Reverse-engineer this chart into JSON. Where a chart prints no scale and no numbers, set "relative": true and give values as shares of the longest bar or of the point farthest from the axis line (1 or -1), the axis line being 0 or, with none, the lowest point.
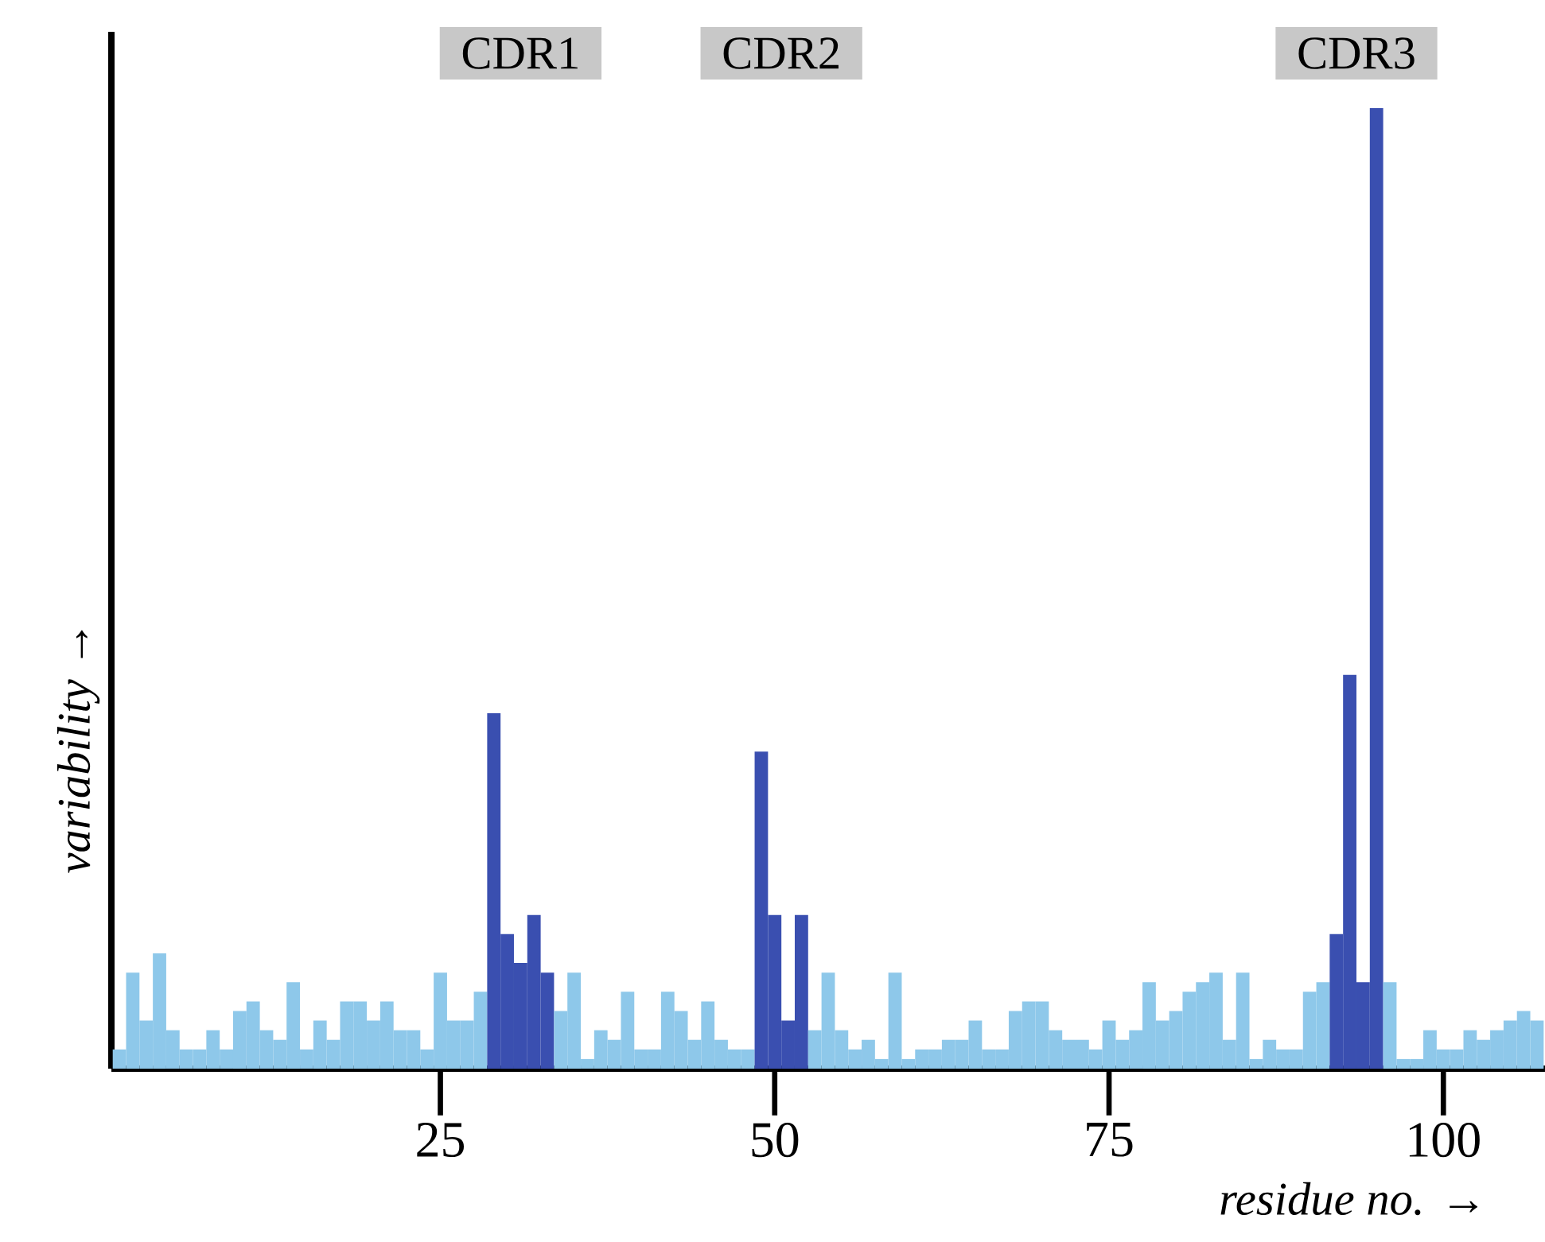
{
  "chart_data": {
    "type": "bar",
    "relative": true,
    "xlabel": "residue no. →",
    "ylabel": "variability →",
    "annotations": [
      "CDR1",
      "CDR2",
      "CDR3"
    ],
    "x": [
      1,
      2,
      3,
      4,
      5,
      6,
      7,
      8,
      9,
      10,
      11,
      12,
      13,
      14,
      15,
      16,
      17,
      18,
      19,
      20,
      21,
      22,
      23,
      24,
      25,
      26,
      27,
      28,
      29,
      30,
      31,
      32,
      33,
      34,
      35,
      36,
      37,
      38,
      39,
      40,
      41,
      42,
      43,
      44,
      45,
      46,
      47,
      48,
      49,
      50,
      51,
      52,
      53,
      54,
      55,
      56,
      57,
      58,
      59,
      60,
      61,
      62,
      63,
      64,
      65,
      66,
      67,
      68,
      69,
      70,
      71,
      72,
      73,
      74,
      75,
      76,
      77,
      78,
      79,
      80,
      81,
      82,
      83,
      84,
      85,
      86,
      87,
      88,
      89,
      90,
      91,
      92,
      93,
      94,
      95,
      96,
      97,
      98,
      99,
      100,
      101,
      102,
      103,
      104,
      105,
      106,
      107
    ],
    "xlim": [
      0.4,
      107.6
    ],
    "xticks": [
      25,
      50,
      75,
      100
    ],
    "values": [
      0.02,
      0.1,
      0.05,
      0.12,
      0.04,
      0.02,
      0.02,
      0.04,
      0.02,
      0.06,
      0.07,
      0.04,
      0.03,
      0.09,
      0.02,
      0.05,
      0.03,
      0.07,
      0.07,
      0.05,
      0.07,
      0.04,
      0.04,
      0.02,
      0.1,
      0.05,
      0.05,
      0.08,
      0.37,
      0.14,
      0.11,
      0.16,
      0.1,
      0.06,
      0.1,
      0.01,
      0.04,
      0.03,
      0.08,
      0.02,
      0.02,
      0.08,
      0.06,
      0.03,
      0.07,
      0.03,
      0.02,
      0.02,
      0.33,
      0.16,
      0.05,
      0.16,
      0.04,
      0.1,
      0.04,
      0.02,
      0.03,
      0.01,
      0.1,
      0.01,
      0.02,
      0.02,
      0.03,
      0.03,
      0.05,
      0.02,
      0.02,
      0.06,
      0.07,
      0.07,
      0.04,
      0.03,
      0.03,
      0.02,
      0.05,
      0.03,
      0.04,
      0.09,
      0.05,
      0.06,
      0.08,
      0.09,
      0.1,
      0.03,
      0.1,
      0.01,
      0.03,
      0.02,
      0.02,
      0.08,
      0.09,
      0.14,
      0.41,
      0.09,
      1,
      0.09,
      0.01,
      0.01,
      0.04,
      0.02,
      0.02,
      0.04,
      0.03,
      0.04,
      0.05,
      0.06,
      0.05
    ],
    "colors": [
      "#8ec8ea",
      "#8ec8ea",
      "#8ec8ea",
      "#8ec8ea",
      "#8ec8ea",
      "#8ec8ea",
      "#8ec8ea",
      "#8ec8ea",
      "#8ec8ea",
      "#8ec8ea",
      "#8ec8ea",
      "#8ec8ea",
      "#8ec8ea",
      "#8ec8ea",
      "#8ec8ea",
      "#8ec8ea",
      "#8ec8ea",
      "#8ec8ea",
      "#8ec8ea",
      "#8ec8ea",
      "#8ec8ea",
      "#8ec8ea",
      "#8ec8ea",
      "#8ec8ea",
      "#8ec8ea",
      "#8ec8ea",
      "#8ec8ea",
      "#8ec8ea",
      "#3a4fb0",
      "#3a4fb0",
      "#3a4fb0",
      "#3a4fb0",
      "#3a4fb0",
      "#8ec8ea",
      "#8ec8ea",
      "#8ec8ea",
      "#8ec8ea",
      "#8ec8ea",
      "#8ec8ea",
      "#8ec8ea",
      "#8ec8ea",
      "#8ec8ea",
      "#8ec8ea",
      "#8ec8ea",
      "#8ec8ea",
      "#8ec8ea",
      "#8ec8ea",
      "#8ec8ea",
      "#3a4fb0",
      "#3a4fb0",
      "#3a4fb0",
      "#3a4fb0",
      "#8ec8ea",
      "#8ec8ea",
      "#8ec8ea",
      "#8ec8ea",
      "#8ec8ea",
      "#8ec8ea",
      "#8ec8ea",
      "#8ec8ea",
      "#8ec8ea",
      "#8ec8ea",
      "#8ec8ea",
      "#8ec8ea",
      "#8ec8ea",
      "#8ec8ea",
      "#8ec8ea",
      "#8ec8ea",
      "#8ec8ea",
      "#8ec8ea",
      "#8ec8ea",
      "#8ec8ea",
      "#8ec8ea",
      "#8ec8ea",
      "#8ec8ea",
      "#8ec8ea",
      "#8ec8ea",
      "#8ec8ea",
      "#8ec8ea",
      "#8ec8ea",
      "#8ec8ea",
      "#8ec8ea",
      "#8ec8ea",
      "#8ec8ea",
      "#8ec8ea",
      "#8ec8ea",
      "#8ec8ea",
      "#8ec8ea",
      "#8ec8ea",
      "#8ec8ea",
      "#8ec8ea",
      "#3a4fb0",
      "#3a4fb0",
      "#3a4fb0",
      "#3a4fb0",
      "#8ec8ea",
      "#8ec8ea",
      "#8ec8ea",
      "#8ec8ea",
      "#8ec8ea",
      "#8ec8ea",
      "#8ec8ea",
      "#8ec8ea",
      "#8ec8ea",
      "#8ec8ea",
      "#8ec8ea",
      "#8ec8ea"
    ]
  }
}
